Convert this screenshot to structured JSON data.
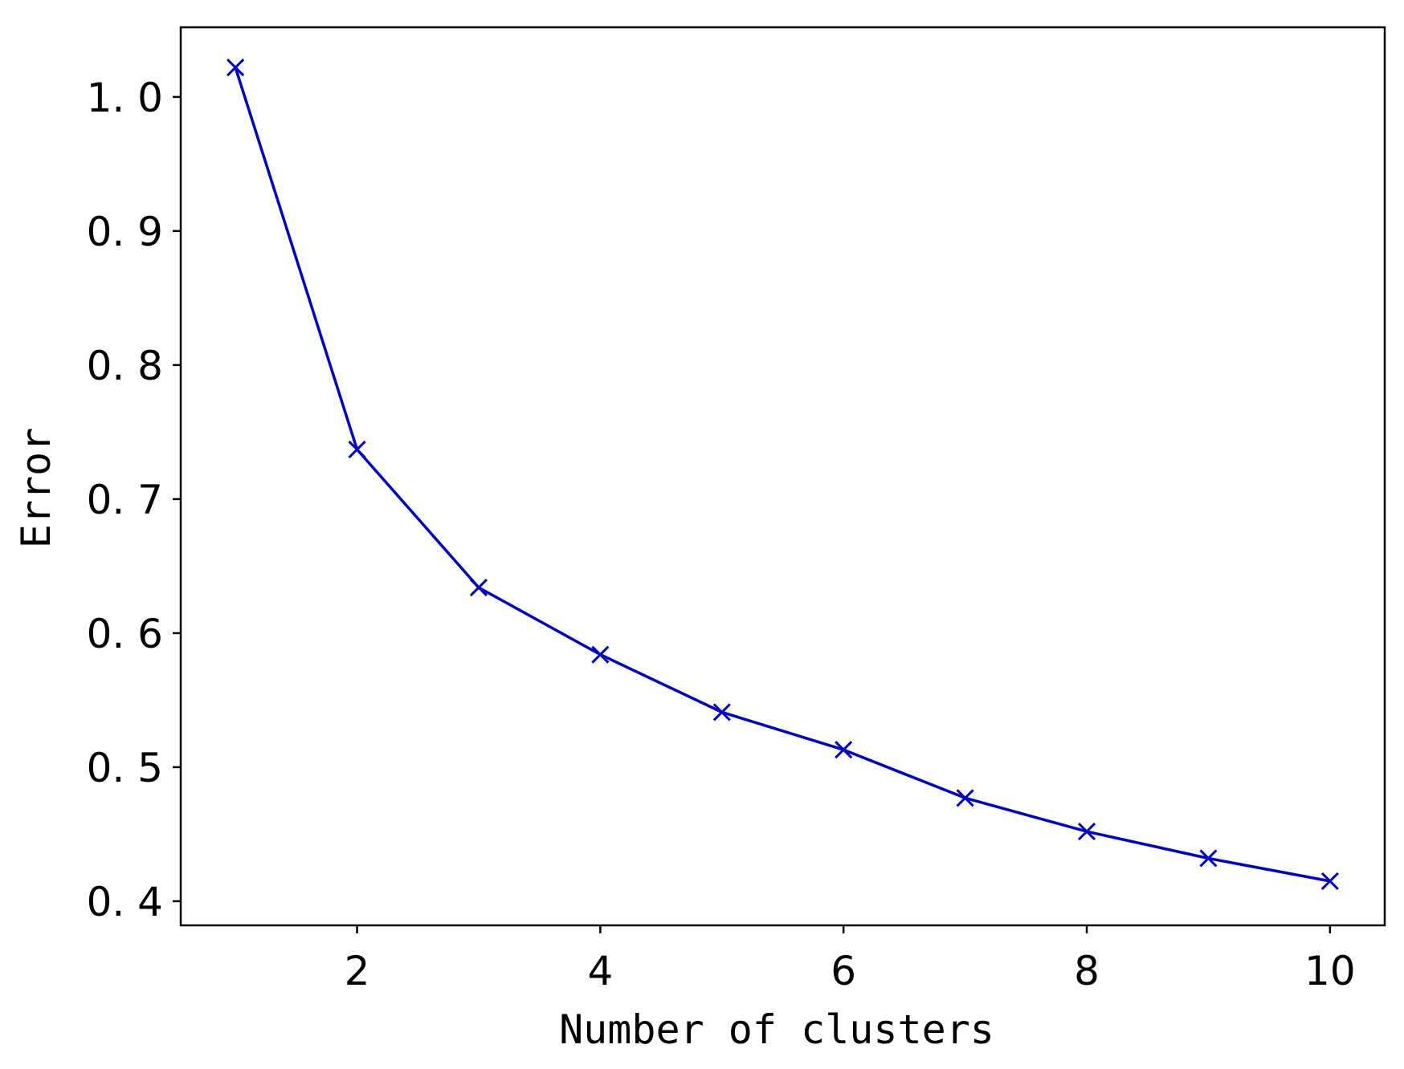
{
  "chart_data": {
    "type": "line",
    "title": "",
    "xlabel": "Number of clusters",
    "ylabel": "Error",
    "xlim": [
      0.55,
      10.45
    ],
    "ylim": [
      0.382,
      1.052
    ],
    "xticks": [
      2,
      4,
      6,
      8,
      10
    ],
    "xtick_labels": [
      "2",
      "4",
      "6",
      "8",
      "10"
    ],
    "yticks": [
      0.4,
      0.5,
      0.6,
      0.7,
      0.8,
      0.9,
      1.0
    ],
    "ytick_labels": [
      "0. 4",
      "0. 5",
      "0. 6",
      "0. 7",
      "0. 8",
      "0. 9",
      "1. 0"
    ],
    "grid": false,
    "legend": false,
    "series": [
      {
        "color": "#0000cc",
        "marker": "x",
        "x": [
          1,
          2,
          3,
          4,
          5,
          6,
          7,
          8,
          9,
          10
        ],
        "y": [
          1.022,
          0.737,
          0.634,
          0.584,
          0.541,
          0.513,
          0.477,
          0.452,
          0.432,
          0.415
        ]
      }
    ]
  }
}
